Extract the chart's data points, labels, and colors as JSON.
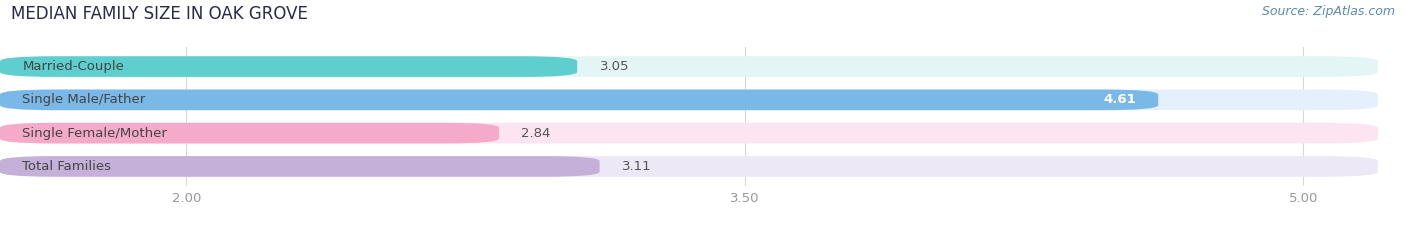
{
  "title": "MEDIAN FAMILY SIZE IN OAK GROVE",
  "source": "Source: ZipAtlas.com",
  "categories": [
    "Married-Couple",
    "Single Male/Father",
    "Single Female/Mother",
    "Total Families"
  ],
  "values": [
    3.05,
    4.61,
    2.84,
    3.11
  ],
  "bar_colors": [
    "#5ecece",
    "#7ab8e8",
    "#f4aac8",
    "#c4b0d8"
  ],
  "bar_bg_colors": [
    "#e4f5f5",
    "#e4f0fc",
    "#fce4f0",
    "#ede8f5"
  ],
  "xlim_data": [
    1.5,
    5.2
  ],
  "xmin": 1.5,
  "xmax": 5.2,
  "xticks": [
    2.0,
    3.5,
    5.0
  ],
  "label_color": "#444444",
  "value_color_inside": "#ffffff",
  "value_color_outside": "#555555",
  "title_fontsize": 12,
  "label_fontsize": 9.5,
  "value_fontsize": 9.5,
  "source_fontsize": 9,
  "background_color": "#ffffff",
  "grid_color": "#d8d8d8",
  "tick_color": "#999999"
}
